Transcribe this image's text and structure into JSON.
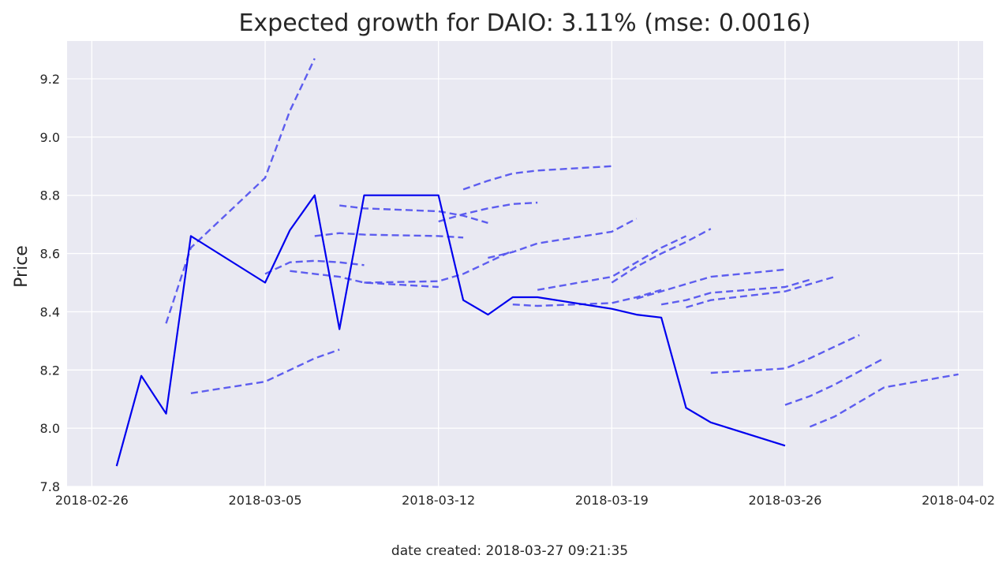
{
  "chart_data": {
    "type": "line",
    "title": "Expected growth for DAIO: 3.11% (mse: 0.0016)",
    "xlabel": "",
    "ylabel": "Price",
    "footer": "date created: 2018-03-27 09:21:35",
    "xlim": [
      "2018-02-25",
      "2018-04-03"
    ],
    "ylim": [
      7.8,
      9.33
    ],
    "x_ticks": [
      "2018-02-26",
      "2018-03-05",
      "2018-03-12",
      "2018-03-19",
      "2018-03-26",
      "2018-04-02"
    ],
    "y_ticks": [
      "7.8",
      "8.0",
      "8.2",
      "8.4",
      "8.6",
      "8.8",
      "9.0",
      "9.2"
    ],
    "grid": true,
    "colors": {
      "background": "#e9e9f2",
      "grid": "#ffffff",
      "actual": "#0000ee",
      "forecast": "#5555ee"
    },
    "series": [
      {
        "style": "solid",
        "points": [
          [
            "2018-02-27",
            7.87
          ],
          [
            "2018-02-28",
            8.18
          ],
          [
            "2018-03-01",
            8.05
          ],
          [
            "2018-03-02",
            8.66
          ],
          [
            "2018-03-05",
            8.5
          ],
          [
            "2018-03-06",
            8.68
          ],
          [
            "2018-03-07",
            8.8
          ],
          [
            "2018-03-08",
            8.34
          ],
          [
            "2018-03-09",
            8.8
          ],
          [
            "2018-03-12",
            8.8
          ],
          [
            "2018-03-13",
            8.44
          ],
          [
            "2018-03-14",
            8.39
          ],
          [
            "2018-03-15",
            8.45
          ],
          [
            "2018-03-16",
            8.45
          ],
          [
            "2018-03-19",
            8.41
          ],
          [
            "2018-03-20",
            8.39
          ],
          [
            "2018-03-21",
            8.38
          ],
          [
            "2018-03-22",
            8.07
          ],
          [
            "2018-03-23",
            8.02
          ],
          [
            "2018-03-26",
            7.94
          ]
        ]
      },
      {
        "style": "dashed",
        "points": [
          [
            "2018-03-01",
            8.36
          ],
          [
            "2018-03-02",
            8.62
          ],
          [
            "2018-03-05",
            8.86
          ],
          [
            "2018-03-06",
            9.09
          ],
          [
            "2018-03-07",
            9.27
          ]
        ]
      },
      {
        "style": "dashed",
        "points": [
          [
            "2018-03-02",
            8.12
          ],
          [
            "2018-03-05",
            8.16
          ],
          [
            "2018-03-06",
            8.2
          ],
          [
            "2018-03-07",
            8.24
          ],
          [
            "2018-03-08",
            8.27
          ]
        ]
      },
      {
        "style": "dashed",
        "points": [
          [
            "2018-03-05",
            8.53
          ],
          [
            "2018-03-06",
            8.57
          ],
          [
            "2018-03-07",
            8.575
          ],
          [
            "2018-03-08",
            8.57
          ],
          [
            "2018-03-09",
            8.56
          ]
        ]
      },
      {
        "style": "dashed",
        "points": [
          [
            "2018-03-06",
            8.54
          ],
          [
            "2018-03-07",
            8.53
          ],
          [
            "2018-03-08",
            8.52
          ],
          [
            "2018-03-09",
            8.5
          ],
          [
            "2018-03-12",
            8.485
          ]
        ]
      },
      {
        "style": "dashed",
        "points": [
          [
            "2018-03-07",
            8.66
          ],
          [
            "2018-03-08",
            8.67
          ],
          [
            "2018-03-09",
            8.665
          ],
          [
            "2018-03-12",
            8.66
          ],
          [
            "2018-03-13",
            8.655
          ]
        ]
      },
      {
        "style": "dashed",
        "points": [
          [
            "2018-03-08",
            8.765
          ],
          [
            "2018-03-09",
            8.755
          ],
          [
            "2018-03-12",
            8.745
          ],
          [
            "2018-03-13",
            8.73
          ],
          [
            "2018-03-14",
            8.705
          ]
        ]
      },
      {
        "style": "dashed",
        "points": [
          [
            "2018-03-09",
            8.5
          ],
          [
            "2018-03-12",
            8.505
          ],
          [
            "2018-03-13",
            8.53
          ],
          [
            "2018-03-14",
            8.57
          ],
          [
            "2018-03-15",
            8.61
          ]
        ]
      },
      {
        "style": "dashed",
        "points": [
          [
            "2018-03-12",
            8.71
          ],
          [
            "2018-03-13",
            8.735
          ],
          [
            "2018-03-14",
            8.755
          ],
          [
            "2018-03-15",
            8.77
          ],
          [
            "2018-03-16",
            8.775
          ]
        ]
      },
      {
        "style": "dashed",
        "points": [
          [
            "2018-03-13",
            8.82
          ],
          [
            "2018-03-14",
            8.85
          ],
          [
            "2018-03-15",
            8.875
          ],
          [
            "2018-03-16",
            8.885
          ],
          [
            "2018-03-19",
            8.9
          ]
        ]
      },
      {
        "style": "dashed",
        "points": [
          [
            "2018-03-14",
            8.585
          ],
          [
            "2018-03-15",
            8.605
          ],
          [
            "2018-03-16",
            8.635
          ],
          [
            "2018-03-19",
            8.675
          ],
          [
            "2018-03-20",
            8.72
          ]
        ]
      },
      {
        "style": "dashed",
        "points": [
          [
            "2018-03-15",
            8.425
          ],
          [
            "2018-03-16",
            8.42
          ],
          [
            "2018-03-19",
            8.43
          ],
          [
            "2018-03-20",
            8.45
          ],
          [
            "2018-03-21",
            8.475
          ]
        ]
      },
      {
        "style": "dashed",
        "points": [
          [
            "2018-03-16",
            8.475
          ],
          [
            "2018-03-19",
            8.52
          ],
          [
            "2018-03-20",
            8.57
          ],
          [
            "2018-03-21",
            8.62
          ],
          [
            "2018-03-22",
            8.66
          ]
        ]
      },
      {
        "style": "dashed",
        "points": [
          [
            "2018-03-19",
            8.5
          ],
          [
            "2018-03-20",
            8.555
          ],
          [
            "2018-03-21",
            8.6
          ],
          [
            "2018-03-22",
            8.64
          ],
          [
            "2018-03-23",
            8.685
          ]
        ]
      },
      {
        "style": "dashed",
        "points": [
          [
            "2018-03-20",
            8.445
          ],
          [
            "2018-03-21",
            8.47
          ],
          [
            "2018-03-22",
            8.495
          ],
          [
            "2018-03-23",
            8.52
          ],
          [
            "2018-03-26",
            8.545
          ]
        ]
      },
      {
        "style": "dashed",
        "points": [
          [
            "2018-03-21",
            8.425
          ],
          [
            "2018-03-22",
            8.44
          ],
          [
            "2018-03-23",
            8.465
          ],
          [
            "2018-03-26",
            8.485
          ],
          [
            "2018-03-27",
            8.51
          ]
        ]
      },
      {
        "style": "dashed",
        "points": [
          [
            "2018-03-22",
            8.415
          ],
          [
            "2018-03-23",
            8.44
          ],
          [
            "2018-03-26",
            8.47
          ],
          [
            "2018-03-27",
            8.495
          ],
          [
            "2018-03-28",
            8.52
          ]
        ]
      },
      {
        "style": "dashed",
        "points": [
          [
            "2018-03-23",
            8.19
          ],
          [
            "2018-03-26",
            8.205
          ],
          [
            "2018-03-27",
            8.24
          ],
          [
            "2018-03-28",
            8.28
          ],
          [
            "2018-03-29",
            8.32
          ]
        ]
      },
      {
        "style": "dashed",
        "points": [
          [
            "2018-03-26",
            8.08
          ],
          [
            "2018-03-27",
            8.11
          ],
          [
            "2018-03-28",
            8.15
          ],
          [
            "2018-03-29",
            8.195
          ],
          [
            "2018-03-30",
            8.24
          ]
        ]
      },
      {
        "style": "dashed",
        "points": [
          [
            "2018-03-27",
            8.005
          ],
          [
            "2018-03-28",
            8.04
          ],
          [
            "2018-03-29",
            8.09
          ],
          [
            "2018-03-30",
            8.14
          ],
          [
            "2018-04-02",
            8.185
          ]
        ]
      }
    ]
  }
}
